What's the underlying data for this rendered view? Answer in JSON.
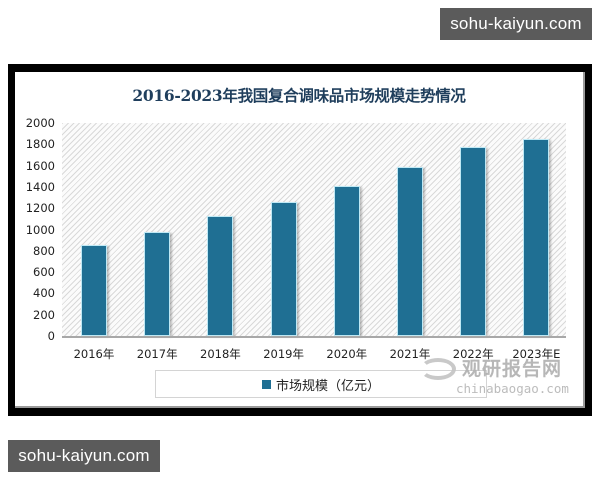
{
  "watermarks": {
    "top_badge": "sohu-kaiyun.com",
    "bottom_badge": "sohu-kaiyun.com",
    "chart_cn": "观研报告网",
    "chart_en": "chinabaogao.com"
  },
  "colors": {
    "bar": "#1f6f93",
    "title": "#1f3e5c",
    "badge": "#5b5b5b"
  },
  "chart_data": {
    "type": "bar",
    "title": "2016-2023年我国复合调味品市场规模走势情况",
    "categories": [
      "2016年",
      "2017年",
      "2018年",
      "2019年",
      "2020年",
      "2021年",
      "2022年",
      "2023年E"
    ],
    "series": [
      {
        "name": "市场规模（亿元）",
        "values": [
          854,
          977,
          1127,
          1258,
          1408,
          1587,
          1775,
          1850
        ]
      }
    ],
    "xlabel": "",
    "ylabel": "",
    "ylim": [
      0,
      2000
    ],
    "yticks": [
      "0",
      "200",
      "400",
      "600",
      "800",
      "1000",
      "1200",
      "1400",
      "1600",
      "1800",
      "2000"
    ],
    "grid": false,
    "legend_position": "bottom"
  }
}
